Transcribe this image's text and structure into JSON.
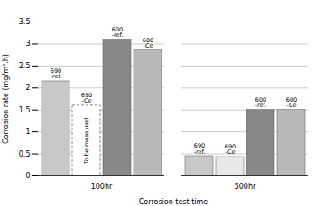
{
  "chart_data": {
    "type": "bar",
    "xlabel": "Corrosion test time",
    "ylabel": "Corrosion rate (mg/m².h)",
    "categories": [
      "100hr",
      "500hr"
    ],
    "series": [
      {
        "name": "690\n-ref.",
        "color": "#c8c8c8",
        "values": [
          2.15,
          0.45
        ]
      },
      {
        "name": "690\n-Ce",
        "color": "#e8e8e8",
        "values": [
          null,
          0.43
        ]
      },
      {
        "name": "600\n-ref.",
        "color": "#888888",
        "values": [
          3.1,
          1.5
        ]
      },
      {
        "name": "600\n-Ce",
        "color": "#b8b8b8",
        "values": [
          2.85,
          1.5
        ]
      }
    ],
    "annotations": [
      {
        "text": "To be measured",
        "category": "100hr",
        "series": "690\n-Ce",
        "height": 1.6
      }
    ],
    "ylim": [
      0,
      3.5
    ],
    "yticks": [
      0,
      0.5,
      1.0,
      1.5,
      2.0,
      2.5,
      3.0,
      3.5
    ],
    "grid": true
  }
}
